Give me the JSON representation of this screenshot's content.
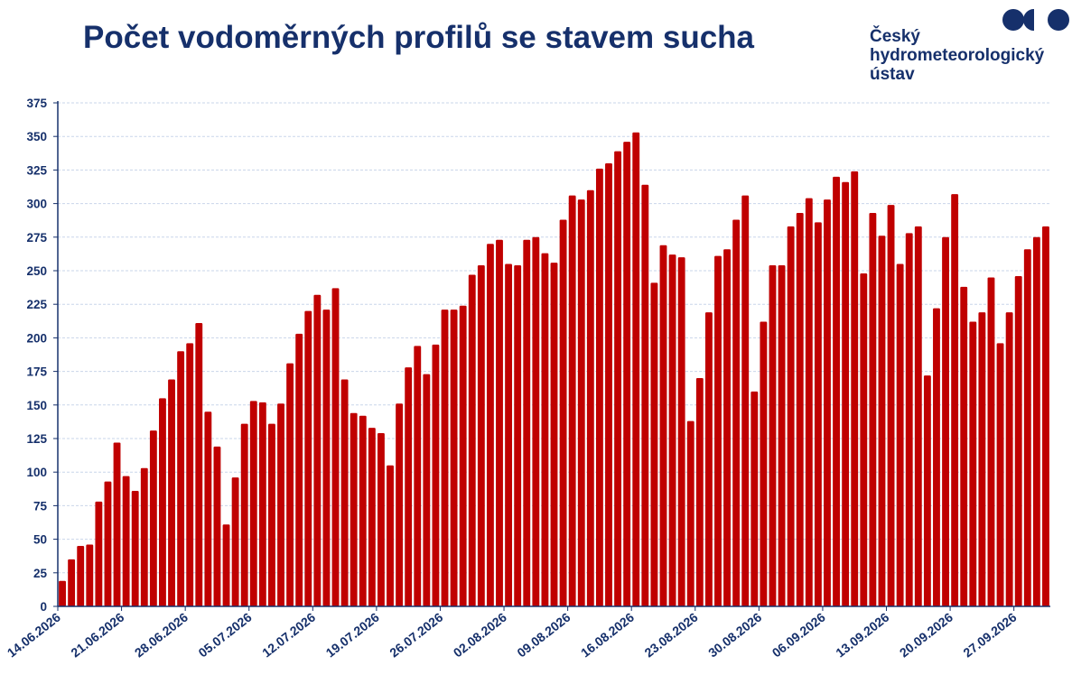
{
  "header": {
    "title": "Počet vodoměrných profilů se stavem sucha"
  },
  "logo": {
    "line1": "Český",
    "line2": "hydrometeorologický",
    "line3": "ústav",
    "color": "#16306b"
  },
  "chart_data": {
    "type": "bar",
    "title": "Počet vodoměrných profilů se stavem sucha",
    "xlabel": "",
    "ylabel": "",
    "ylim": [
      0,
      375
    ],
    "yticks": [
      0,
      25,
      50,
      75,
      100,
      125,
      150,
      175,
      200,
      225,
      250,
      275,
      300,
      325,
      350,
      375
    ],
    "grid": true,
    "legend": "none",
    "bar_color": "#c00000",
    "axis_color": "#16306b",
    "start_date": "14.06.2026",
    "xtick_labels": [
      "14.06.2026",
      "21.06.2026",
      "28.06.2026",
      "05.07.2026",
      "12.07.2026",
      "19.07.2026",
      "26.07.2026",
      "02.08.2026",
      "09.08.2026",
      "16.08.2026",
      "23.08.2026",
      "30.08.2026",
      "06.09.2026",
      "13.09.2026",
      "20.09.2026",
      "27.09.2026"
    ],
    "values": [
      19,
      35,
      45,
      46,
      78,
      93,
      122,
      97,
      86,
      103,
      131,
      155,
      169,
      190,
      196,
      211,
      145,
      119,
      61,
      96,
      136,
      153,
      152,
      136,
      151,
      181,
      203,
      220,
      232,
      221,
      237,
      169,
      144,
      142,
      133,
      129,
      105,
      151,
      178,
      194,
      173,
      195,
      221,
      221,
      224,
      247,
      254,
      270,
      273,
      255,
      254,
      273,
      275,
      263,
      256,
      288,
      306,
      303,
      310,
      326,
      330,
      339,
      346,
      353,
      314,
      241,
      269,
      262,
      260,
      138,
      170,
      219,
      261,
      266,
      288,
      306,
      160,
      212,
      254,
      254,
      283,
      293,
      304,
      286,
      303,
      320,
      316,
      324,
      248,
      293,
      276,
      299,
      255,
      278,
      283,
      172,
      222,
      275,
      307,
      238,
      212,
      219,
      245,
      196,
      219,
      246,
      266,
      275,
      283
    ]
  }
}
